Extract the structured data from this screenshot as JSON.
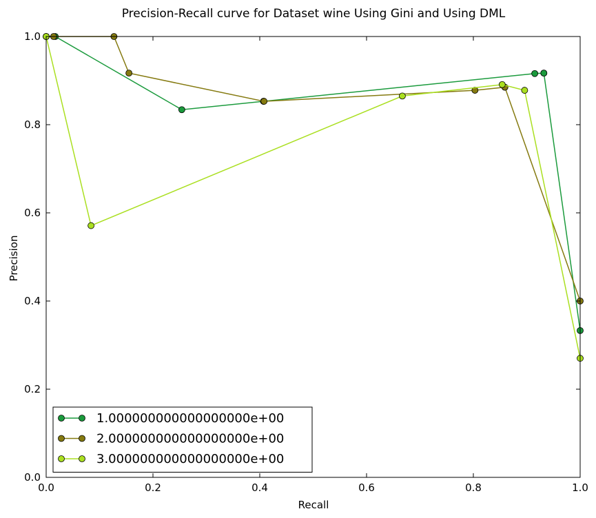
{
  "chart_data": {
    "type": "line",
    "title": "Precision-Recall curve for Dataset wine Using Gini and Using DML",
    "xlabel": "Recall",
    "ylabel": "Precision",
    "xlim": [
      0.0,
      1.0
    ],
    "ylim": [
      0.0,
      1.0
    ],
    "xticks": [
      "0.0",
      "0.2",
      "0.4",
      "0.6",
      "0.8",
      "1.0"
    ],
    "yticks": [
      "0.0",
      "0.2",
      "0.4",
      "0.6",
      "0.8",
      "1.0"
    ],
    "grid": false,
    "legend_position": "lower-left",
    "series": [
      {
        "name": "1.000000000000000000e+00",
        "color": "#1a9a3c",
        "points": [
          [
            0.0,
            1.0
          ],
          [
            0.017,
            1.0
          ],
          [
            0.254,
            0.834
          ],
          [
            0.407,
            0.853
          ],
          [
            0.915,
            0.916
          ],
          [
            0.932,
            0.917
          ],
          [
            0.932,
            0.917
          ],
          [
            1.0,
            0.333
          ]
        ]
      },
      {
        "name": "2.000000000000000000e+00",
        "color": "#857a10",
        "points": [
          [
            0.0,
            1.0
          ],
          [
            0.014,
            1.0
          ],
          [
            0.127,
            1.0
          ],
          [
            0.155,
            0.917
          ],
          [
            0.408,
            0.853
          ],
          [
            0.803,
            0.878
          ],
          [
            0.859,
            0.885
          ],
          [
            0.859,
            0.885
          ],
          [
            1.0,
            0.4
          ]
        ]
      },
      {
        "name": "3.000000000000000000e+00",
        "color": "#aadf20",
        "points": [
          [
            0.0,
            1.0
          ],
          [
            0.084,
            0.571
          ],
          [
            0.667,
            0.865
          ],
          [
            0.854,
            0.891
          ],
          [
            0.896,
            0.878
          ],
          [
            1.0,
            0.27
          ]
        ]
      }
    ]
  }
}
